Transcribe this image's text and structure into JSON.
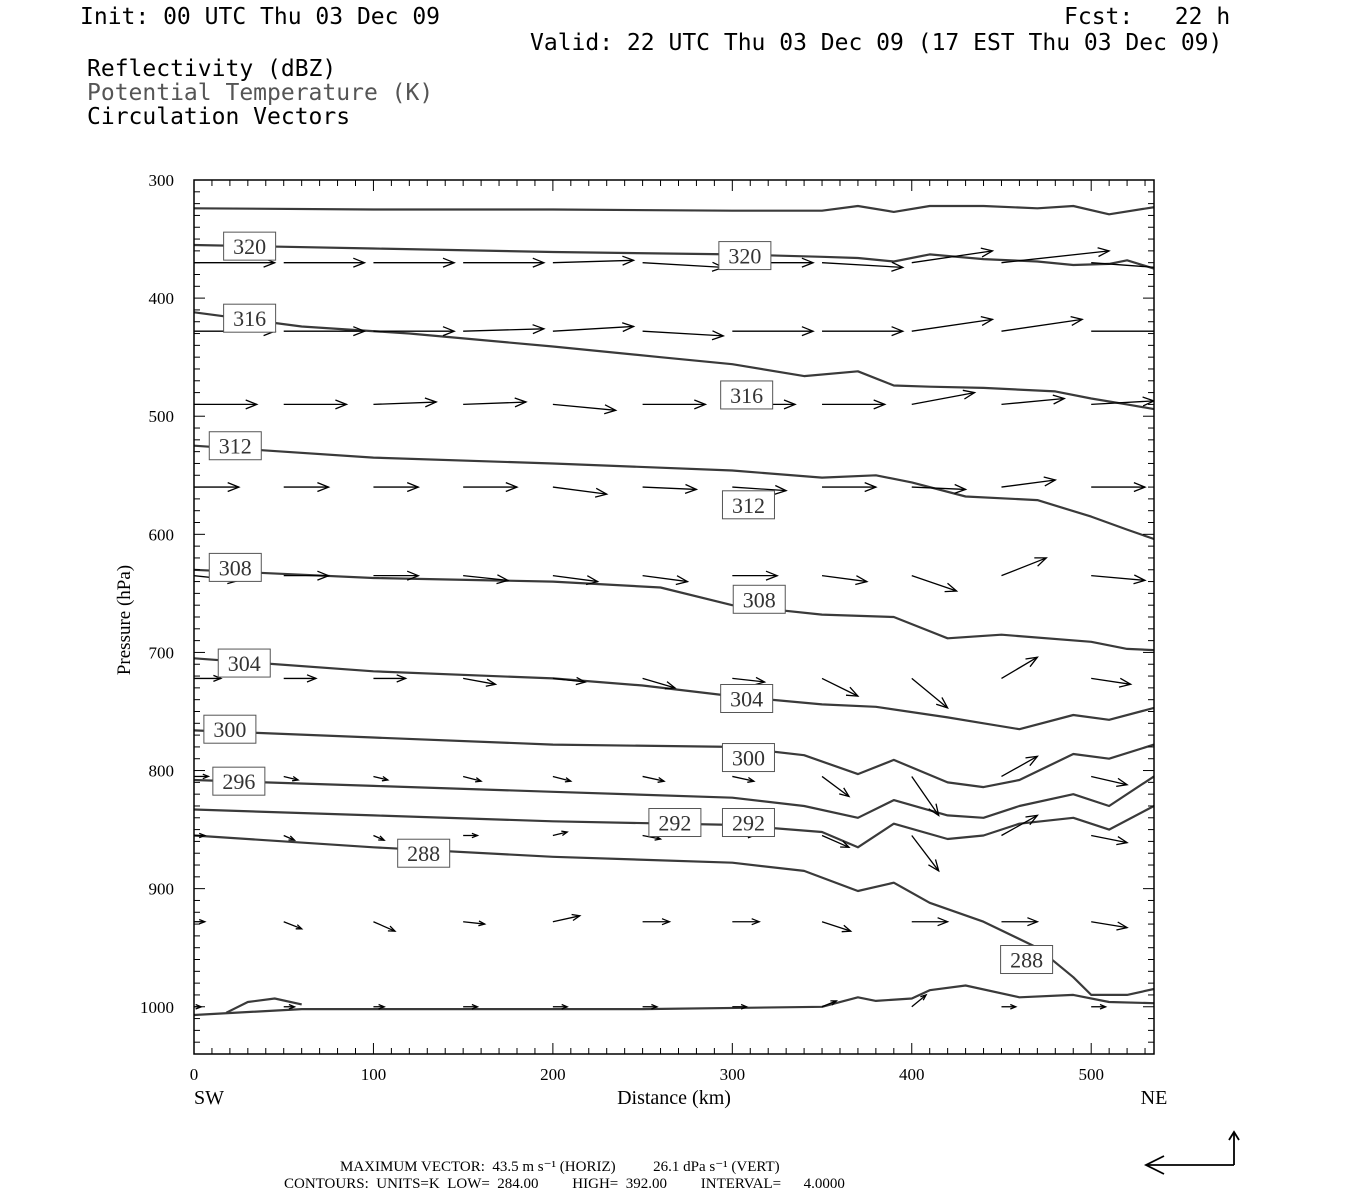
{
  "header": {
    "init": "Init: 00 UTC Thu 03 Dec 09",
    "fcst": "Fcst:   22 h",
    "valid": "Valid: 22 UTC Thu 03 Dec 09 (17 EST Thu 03 Dec 09)",
    "field1": "Reflectivity (dBZ)",
    "field2": "Potential Temperature (K)",
    "field3": "Circulation Vectors"
  },
  "footer": {
    "line1": "MAXIMUM VECTOR:  43.5 m s⁻¹ (HORIZ)          26.1 dPa s⁻¹ (VERT)",
    "line2": "CONTOURS:  UNITS=K  LOW=  284.00         HIGH=  392.00         INTERVAL=      4.0000"
  },
  "colors": {
    "contour": "#3a3a3a",
    "vector": "#000000",
    "label_gray": "#555555"
  },
  "chart_data": {
    "type": "line",
    "xlabel": "Distance (km)",
    "ylabel": "Pressure (hPa)",
    "x_end_labels": {
      "left": "SW",
      "right": "NE"
    },
    "xlim": [
      0,
      535
    ],
    "ylim": [
      1040,
      300
    ],
    "y_scale": "linear, inverted",
    "x_ticks": [
      0,
      100,
      200,
      300,
      400,
      500
    ],
    "y_ticks": [
      300,
      400,
      500,
      600,
      700,
      800,
      900,
      1000
    ],
    "grid": false,
    "isentropes": [
      {
        "label": "",
        "points": [
          [
            0,
            324
          ],
          [
            100,
            325
          ],
          [
            200,
            325
          ],
          [
            300,
            326
          ],
          [
            350,
            326
          ],
          [
            370,
            322
          ],
          [
            390,
            327
          ],
          [
            410,
            322
          ],
          [
            440,
            322
          ],
          [
            470,
            324
          ],
          [
            490,
            322
          ],
          [
            510,
            329
          ],
          [
            535,
            323
          ]
        ]
      },
      {
        "label": "320",
        "label_positions": [
          [
            31,
            356
          ],
          [
            307,
            364
          ]
        ],
        "points": [
          [
            0,
            355
          ],
          [
            100,
            358
          ],
          [
            200,
            361
          ],
          [
            300,
            363
          ],
          [
            350,
            365
          ],
          [
            370,
            366
          ],
          [
            390,
            369
          ],
          [
            410,
            363
          ],
          [
            440,
            367
          ],
          [
            470,
            369
          ],
          [
            490,
            372
          ],
          [
            510,
            371
          ],
          [
            520,
            368
          ],
          [
            535,
            375
          ]
        ]
      },
      {
        "label": "316",
        "label_positions": [
          [
            31,
            417
          ],
          [
            308,
            482
          ]
        ],
        "points": [
          [
            0,
            412
          ],
          [
            60,
            424
          ],
          [
            120,
            430
          ],
          [
            200,
            441
          ],
          [
            260,
            450
          ],
          [
            300,
            456
          ],
          [
            340,
            466
          ],
          [
            370,
            462
          ],
          [
            390,
            474
          ],
          [
            410,
            475
          ],
          [
            440,
            476
          ],
          [
            480,
            479
          ],
          [
            500,
            485
          ],
          [
            520,
            490
          ],
          [
            535,
            494
          ]
        ]
      },
      {
        "label": "312",
        "label_positions": [
          [
            23,
            525
          ],
          [
            309,
            575
          ]
        ],
        "points": [
          [
            0,
            525
          ],
          [
            100,
            535
          ],
          [
            200,
            540
          ],
          [
            300,
            546
          ],
          [
            350,
            552
          ],
          [
            380,
            550
          ],
          [
            400,
            556
          ],
          [
            430,
            568
          ],
          [
            470,
            571
          ],
          [
            500,
            585
          ],
          [
            520,
            596
          ],
          [
            535,
            604
          ]
        ]
      },
      {
        "label": "308",
        "label_positions": [
          [
            23,
            628
          ],
          [
            315,
            655
          ]
        ],
        "points": [
          [
            0,
            630
          ],
          [
            100,
            637
          ],
          [
            200,
            640
          ],
          [
            260,
            645
          ],
          [
            300,
            660
          ],
          [
            350,
            668
          ],
          [
            390,
            670
          ],
          [
            420,
            688
          ],
          [
            450,
            685
          ],
          [
            500,
            691
          ],
          [
            520,
            697
          ],
          [
            535,
            698
          ]
        ]
      },
      {
        "label": "304",
        "label_positions": [
          [
            28,
            709
          ],
          [
            308,
            739
          ]
        ],
        "points": [
          [
            0,
            705
          ],
          [
            100,
            716
          ],
          [
            200,
            722
          ],
          [
            250,
            728
          ],
          [
            300,
            737
          ],
          [
            350,
            744
          ],
          [
            380,
            746
          ],
          [
            420,
            755
          ],
          [
            440,
            760
          ],
          [
            460,
            765
          ],
          [
            490,
            753
          ],
          [
            510,
            757
          ],
          [
            530,
            749
          ],
          [
            535,
            747
          ]
        ]
      },
      {
        "label": "300",
        "label_positions": [
          [
            20,
            765
          ],
          [
            309,
            789
          ]
        ],
        "points": [
          [
            0,
            766
          ],
          [
            100,
            772
          ],
          [
            200,
            778
          ],
          [
            300,
            780
          ],
          [
            340,
            787
          ],
          [
            370,
            803
          ],
          [
            390,
            791
          ],
          [
            420,
            810
          ],
          [
            440,
            814
          ],
          [
            460,
            808
          ],
          [
            490,
            786
          ],
          [
            510,
            790
          ],
          [
            535,
            778
          ]
        ]
      },
      {
        "label": "296",
        "label_positions": [
          [
            25,
            809
          ]
        ],
        "points": [
          [
            0,
            808
          ],
          [
            100,
            813
          ],
          [
            200,
            818
          ],
          [
            300,
            823
          ],
          [
            340,
            830
          ],
          [
            370,
            840
          ],
          [
            390,
            825
          ],
          [
            420,
            838
          ],
          [
            440,
            840
          ],
          [
            460,
            830
          ],
          [
            490,
            820
          ],
          [
            510,
            830
          ],
          [
            535,
            805
          ]
        ]
      },
      {
        "label": "292",
        "label_positions": [
          [
            268,
            844
          ],
          [
            309,
            844
          ]
        ],
        "points": [
          [
            0,
            833
          ],
          [
            100,
            838
          ],
          [
            200,
            843
          ],
          [
            300,
            846
          ],
          [
            350,
            852
          ],
          [
            370,
            865
          ],
          [
            390,
            845
          ],
          [
            420,
            858
          ],
          [
            440,
            855
          ],
          [
            460,
            845
          ],
          [
            490,
            840
          ],
          [
            510,
            850
          ],
          [
            535,
            830
          ]
        ]
      },
      {
        "label": "288",
        "label_positions": [
          [
            128,
            870
          ],
          [
            464,
            960
          ]
        ],
        "points": [
          [
            0,
            855
          ],
          [
            100,
            865
          ],
          [
            200,
            873
          ],
          [
            300,
            878
          ],
          [
            340,
            885
          ],
          [
            370,
            902
          ],
          [
            390,
            895
          ],
          [
            410,
            912
          ],
          [
            440,
            928
          ],
          [
            470,
            950
          ],
          [
            490,
            975
          ],
          [
            500,
            990
          ],
          [
            520,
            990
          ],
          [
            535,
            985
          ]
        ]
      },
      {
        "label": "",
        "points": [
          [
            0,
            1007
          ],
          [
            60,
            1002
          ],
          [
            150,
            1002
          ],
          [
            250,
            1002
          ],
          [
            350,
            1000
          ],
          [
            370,
            992
          ],
          [
            380,
            995
          ],
          [
            400,
            993
          ],
          [
            410,
            986
          ],
          [
            430,
            982
          ],
          [
            460,
            992
          ],
          [
            490,
            990
          ],
          [
            510,
            996
          ],
          [
            535,
            997
          ]
        ]
      },
      {
        "label": "",
        "points": [
          [
            18,
            1005
          ],
          [
            30,
            996
          ],
          [
            45,
            993
          ],
          [
            60,
            998
          ]
        ]
      }
    ],
    "vectors": {
      "description": "Circulation vectors (u, omega) with tails at grid points; dx in km-scale units, dp in hPa (negative = upward).",
      "rows": [
        {
          "p": 370,
          "x": [
            0,
            50,
            100,
            150,
            200,
            250,
            300,
            350,
            400,
            450,
            500
          ],
          "dx": [
            45,
            45,
            45,
            45,
            45,
            45,
            45,
            45,
            45,
            60,
            45
          ],
          "dp": [
            0,
            0,
            0,
            0,
            -2,
            4,
            0,
            4,
            -10,
            -10,
            5
          ]
        },
        {
          "p": 428,
          "x": [
            0,
            50,
            100,
            150,
            200,
            250,
            300,
            350,
            400,
            450,
            500
          ],
          "dx": [
            45,
            45,
            45,
            45,
            45,
            45,
            45,
            45,
            45,
            45,
            45
          ],
          "dp": [
            0,
            0,
            0,
            -2,
            -4,
            4,
            0,
            0,
            -10,
            -10,
            0
          ]
        },
        {
          "p": 490,
          "x": [
            0,
            50,
            100,
            150,
            200,
            250,
            300,
            350,
            400,
            450,
            500
          ],
          "dx": [
            35,
            35,
            35,
            35,
            35,
            35,
            35,
            35,
            35,
            35,
            35
          ],
          "dp": [
            0,
            0,
            -2,
            -2,
            5,
            0,
            0,
            0,
            -10,
            -5,
            -3
          ]
        },
        {
          "p": 560,
          "x": [
            0,
            50,
            100,
            150,
            200,
            250,
            300,
            350,
            400,
            450,
            500
          ],
          "dx": [
            25,
            25,
            25,
            30,
            30,
            30,
            30,
            30,
            30,
            30,
            30
          ],
          "dp": [
            0,
            0,
            0,
            0,
            6,
            2,
            3,
            0,
            2,
            -6,
            0
          ]
        },
        {
          "p": 635,
          "x": [
            0,
            50,
            100,
            150,
            200,
            250,
            300,
            350,
            400,
            450,
            500
          ],
          "dx": [
            25,
            25,
            25,
            25,
            25,
            25,
            25,
            25,
            25,
            25,
            30
          ],
          "dp": [
            4,
            0,
            0,
            4,
            5,
            5,
            0,
            5,
            13,
            -15,
            4
          ]
        },
        {
          "p": 722,
          "x": [
            0,
            50,
            100,
            150,
            200,
            250,
            300,
            350,
            400,
            450,
            500
          ],
          "dx": [
            15,
            18,
            18,
            18,
            18,
            18,
            18,
            20,
            20,
            20,
            22
          ],
          "dp": [
            0,
            0,
            0,
            5,
            3,
            8,
            3,
            15,
            25,
            -18,
            5
          ]
        },
        {
          "p": 805,
          "x": [
            0,
            50,
            100,
            150,
            200,
            250,
            300,
            350,
            400,
            450,
            500
          ],
          "dx": [
            8,
            8,
            8,
            10,
            10,
            12,
            12,
            15,
            15,
            20,
            20
          ],
          "dp": [
            0,
            3,
            3,
            4,
            4,
            4,
            4,
            17,
            33,
            -17,
            7
          ]
        },
        {
          "p": 855,
          "x": [
            0,
            50,
            100,
            150,
            200,
            250,
            300,
            350,
            400,
            450,
            500
          ],
          "dx": [
            6,
            6,
            6,
            8,
            8,
            10,
            12,
            15,
            15,
            20,
            20
          ],
          "dp": [
            0,
            4,
            4,
            0,
            -3,
            3,
            0,
            10,
            30,
            -17,
            6
          ]
        },
        {
          "p": 928,
          "x": [
            0,
            50,
            100,
            150,
            200,
            250,
            300,
            350,
            400,
            450,
            500
          ],
          "dx": [
            6,
            10,
            12,
            12,
            15,
            15,
            15,
            16,
            20,
            20,
            20
          ],
          "dp": [
            0,
            6,
            8,
            2,
            -5,
            0,
            0,
            8,
            0,
            0,
            5
          ]
        },
        {
          "p": 1000,
          "x": [
            0,
            50,
            100,
            150,
            200,
            250,
            300,
            350,
            400,
            450,
            500
          ],
          "dx": [
            4,
            6,
            6,
            8,
            8,
            8,
            8,
            8,
            8,
            8,
            8
          ],
          "dp": [
            0,
            0,
            0,
            0,
            0,
            0,
            0,
            -5,
            -10,
            0,
            0
          ]
        }
      ]
    }
  }
}
